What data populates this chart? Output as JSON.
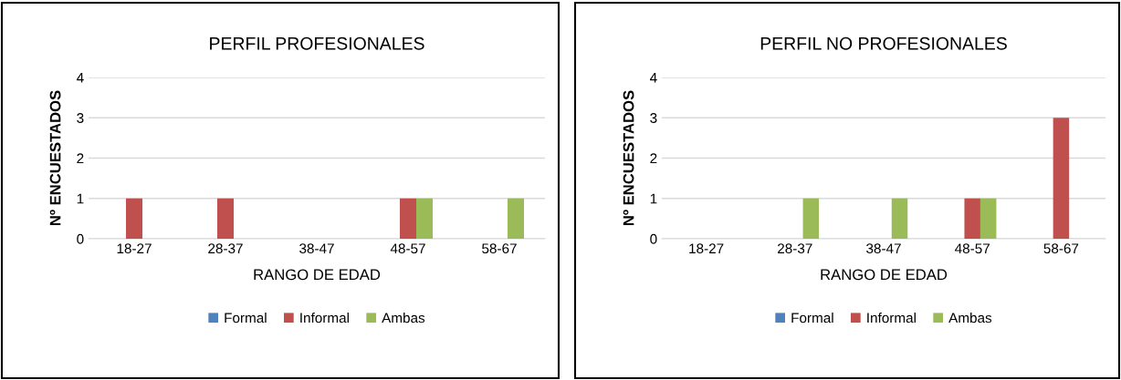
{
  "chart_data": [
    {
      "type": "bar",
      "title": "PERFIL PROFESIONALES",
      "xlabel": "RANGO DE EDAD",
      "ylabel": "Nº ENCUESTADOS",
      "categories": [
        "18-27",
        "28-37",
        "38-47",
        "48-57",
        "58-67"
      ],
      "series": [
        {
          "name": "Formal",
          "color": "#4f81bd",
          "values": [
            0,
            0,
            0,
            0,
            0
          ]
        },
        {
          "name": "Informal",
          "color": "#c0504d",
          "values": [
            1,
            1,
            0,
            1,
            0
          ]
        },
        {
          "name": "Ambas",
          "color": "#9bbb59",
          "values": [
            0,
            0,
            0,
            1,
            1
          ]
        }
      ],
      "ylim": [
        0,
        4
      ],
      "yticks": [
        0,
        1,
        2,
        3,
        4
      ],
      "grid": "y",
      "legend": "bottom"
    },
    {
      "type": "bar",
      "title": "PERFIL NO PROFESIONALES",
      "xlabel": "RANGO DE EDAD",
      "ylabel": "Nº ENCUESTADOS",
      "categories": [
        "18-27",
        "28-37",
        "38-47",
        "48-57",
        "58-67"
      ],
      "series": [
        {
          "name": "Formal",
          "color": "#4f81bd",
          "values": [
            0,
            0,
            0,
            0,
            0
          ]
        },
        {
          "name": "Informal",
          "color": "#c0504d",
          "values": [
            0,
            0,
            0,
            1,
            3
          ]
        },
        {
          "name": "Ambas",
          "color": "#9bbb59",
          "values": [
            0,
            1,
            1,
            1,
            0
          ]
        }
      ],
      "ylim": [
        0,
        4
      ],
      "yticks": [
        0,
        1,
        2,
        3,
        4
      ],
      "grid": "y",
      "legend": "bottom"
    }
  ]
}
